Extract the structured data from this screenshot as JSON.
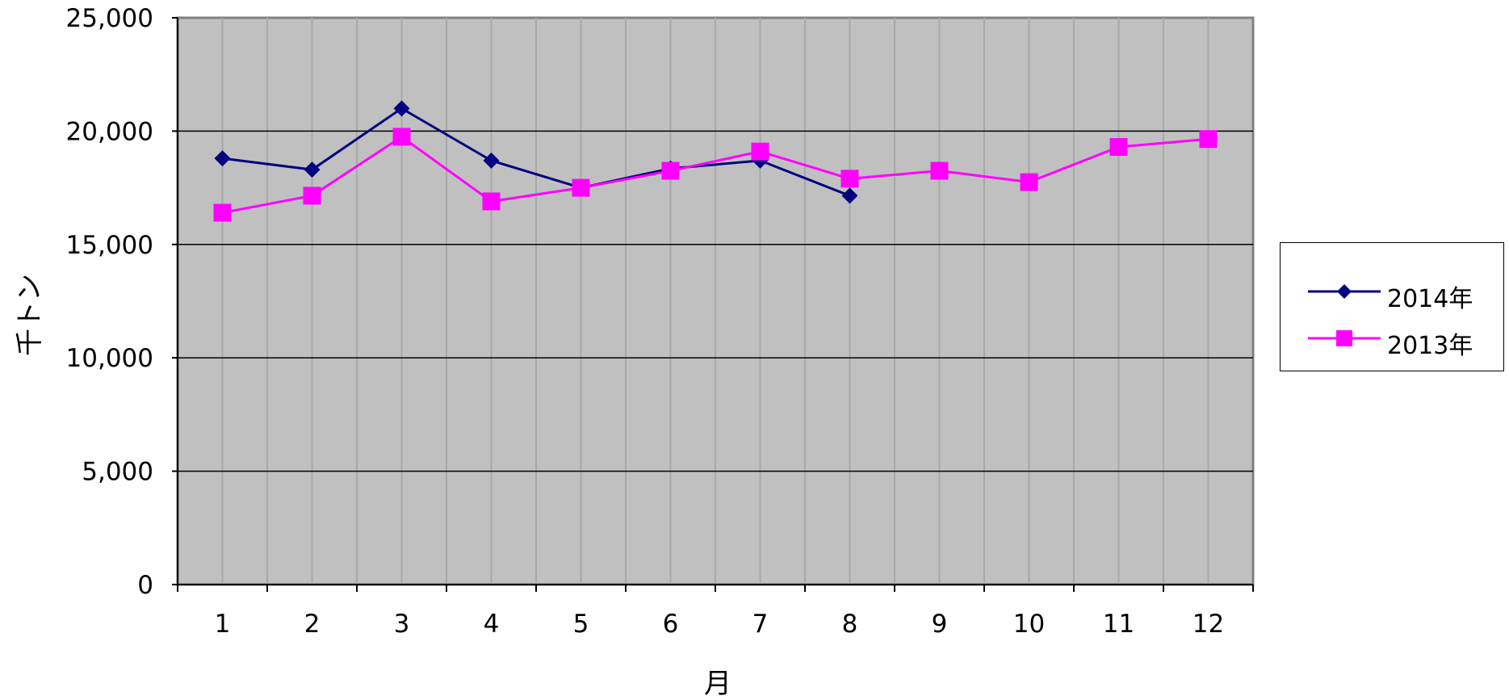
{
  "chart_data": {
    "type": "line",
    "xlabel": "月",
    "ylabel": "千トン",
    "categories": [
      "1",
      "2",
      "3",
      "4",
      "5",
      "6",
      "7",
      "8",
      "9",
      "10",
      "11",
      "12"
    ],
    "ylim": [
      0,
      25000
    ],
    "yticks": [
      0,
      5000,
      10000,
      15000,
      20000,
      25000
    ],
    "ytick_labels": [
      "0",
      "5,000",
      "10,000",
      "15,000",
      "20,000",
      "25,000"
    ],
    "grid": true,
    "legend_position": "right",
    "plot_background": "#c0c0c0",
    "series": [
      {
        "name": "2014年",
        "color": "#000080",
        "marker": "diamond",
        "values": [
          18800,
          18300,
          21000,
          18700,
          17500,
          18350,
          18700,
          17150,
          null,
          null,
          null,
          null
        ]
      },
      {
        "name": "2013年",
        "color": "#ff00ff",
        "marker": "square",
        "values": [
          16400,
          17150,
          19750,
          16900,
          17500,
          18250,
          19100,
          17900,
          18250,
          17750,
          19300,
          19650
        ]
      }
    ]
  }
}
